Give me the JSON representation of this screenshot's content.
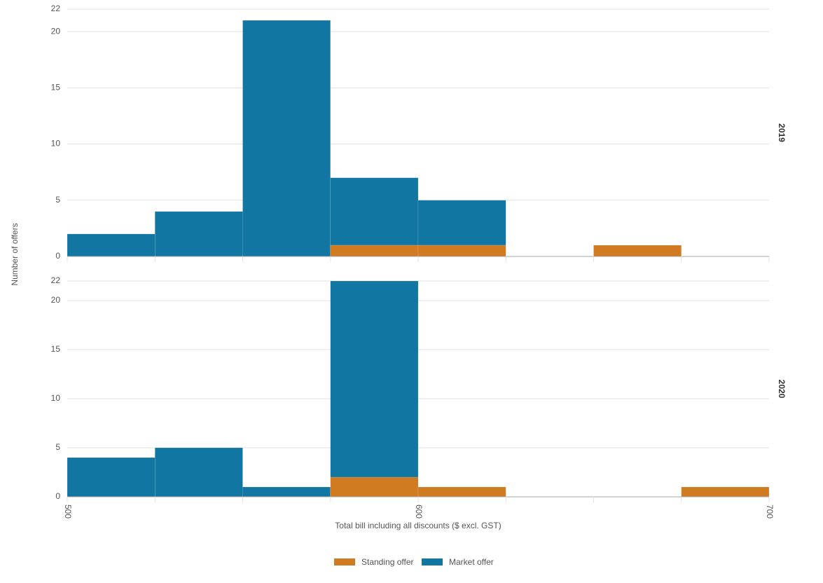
{
  "chart_data": {
    "type": "histogram",
    "x_label": "Total bill including all discounts ($ excl. GST)",
    "y_label": "Number of offers",
    "bins": [
      500,
      525,
      550,
      575,
      600,
      625,
      650,
      675,
      700
    ],
    "xlim": [
      500,
      700
    ],
    "xticks": [
      500,
      600,
      700
    ],
    "ylim": [
      0,
      22
    ],
    "yticks": [
      0,
      5,
      10,
      15,
      20,
      22
    ],
    "grid": true,
    "stacked": true,
    "legend": "bottom",
    "facets": [
      "2019",
      "2020"
    ],
    "series": [
      {
        "name": "Standing offer",
        "color": "#d07a22",
        "values": [
          [
            0,
            0,
            0,
            1,
            1,
            0,
            1,
            0
          ],
          [
            0,
            0,
            0,
            2,
            1,
            0,
            0,
            1
          ]
        ]
      },
      {
        "name": "Market offer",
        "color": "#1276a3",
        "values": [
          [
            2,
            4,
            21,
            6,
            4,
            0,
            0,
            0
          ],
          [
            4,
            5,
            1,
            20,
            0,
            0,
            0,
            0
          ]
        ]
      }
    ]
  }
}
